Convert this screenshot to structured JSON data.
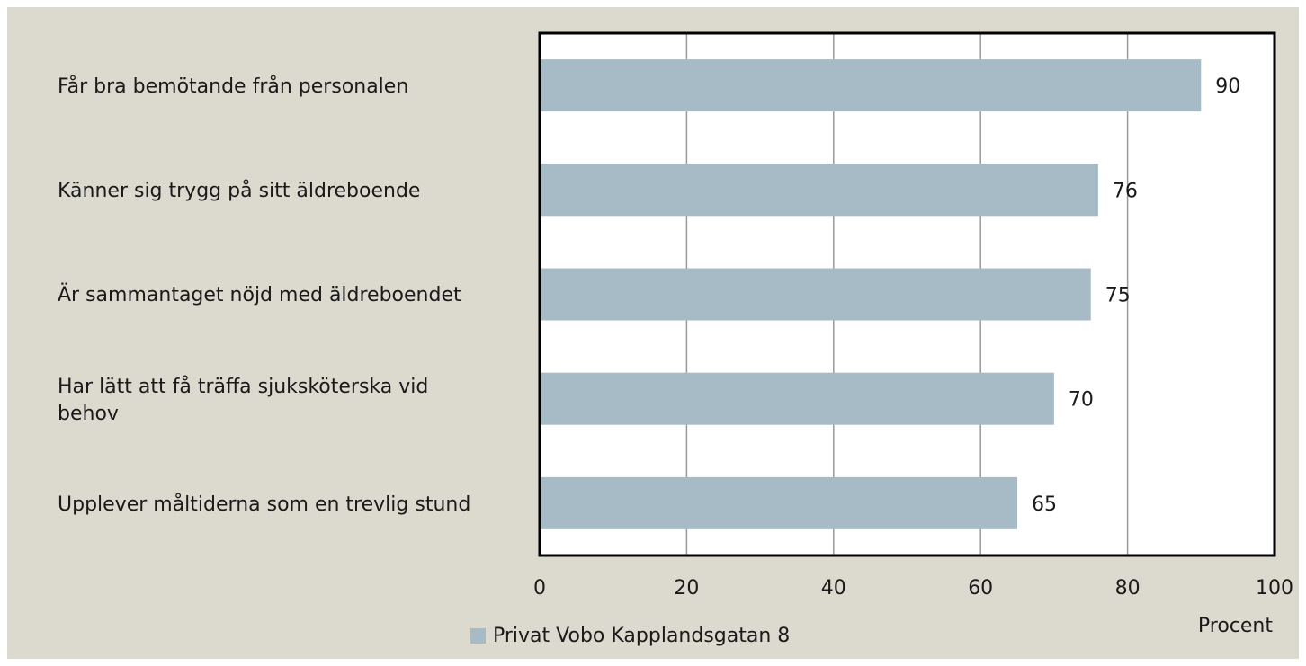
{
  "chart_data": {
    "type": "bar",
    "orientation": "horizontal",
    "categories": [
      "Får bra bemötande från personalen",
      "Känner sig trygg på sitt äldreboende",
      "Är sammantaget nöjd med äldreboendet",
      "Har lätt att få träffa sjuksköterska vid behov",
      "Upplever måltiderna som en trevlig stund"
    ],
    "series": [
      {
        "name": "Privat Vobo Kapplandsgatan 8",
        "color": "#a7bbc6",
        "values": [
          90,
          76,
          75,
          70,
          65
        ]
      }
    ],
    "xlim": [
      0,
      100
    ],
    "xticks": [
      0,
      20,
      40,
      60,
      80,
      100
    ],
    "x_label": "Procent",
    "grid": true,
    "legend": "bottom"
  }
}
